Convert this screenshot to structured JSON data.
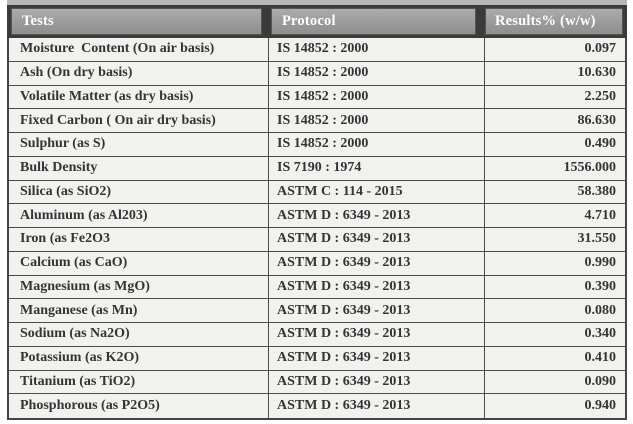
{
  "table": {
    "columns": [
      {
        "label": "Tests"
      },
      {
        "label": "Protocol"
      },
      {
        "label": "Results% (w/w)"
      }
    ],
    "rows": [
      {
        "test": "Moisture  Content (On air basis)",
        "protocol": "IS 14852 : 2000",
        "result": "0.097"
      },
      {
        "test": "Ash (On dry basis)",
        "protocol": "IS 14852 : 2000",
        "result": "10.630"
      },
      {
        "test": "Volatile Matter (as dry basis)",
        "protocol": "IS 14852 : 2000",
        "result": "2.250"
      },
      {
        "test": "Fixed Carbon ( On air dry basis)",
        "protocol": "IS 14852 : 2000",
        "result": "86.630"
      },
      {
        "test": "Sulphur (as S)",
        "protocol": "IS 14852 : 2000",
        "result": "0.490"
      },
      {
        "test": "Bulk Density",
        "protocol": "IS 7190 : 1974",
        "result": "1556.000"
      },
      {
        "test": "Silica (as SiO2)",
        "protocol": "ASTM C : 114 - 2015",
        "result": "58.380"
      },
      {
        "test": "Aluminum (as Al203)",
        "protocol": "ASTM D : 6349 - 2013",
        "result": "4.710"
      },
      {
        "test": "Iron (as Fe2O3",
        "protocol": "ASTM D : 6349 - 2013",
        "result": "31.550"
      },
      {
        "test": "Calcium (as CaO)",
        "protocol": "ASTM D : 6349 - 2013",
        "result": "0.990"
      },
      {
        "test": "Magnesium (as MgO)",
        "protocol": "ASTM D : 6349 - 2013",
        "result": "0.390"
      },
      {
        "test": "Manganese (as Mn)",
        "protocol": "ASTM D : 6349 - 2013",
        "result": "0.080"
      },
      {
        "test": "Sodium (as Na2O)",
        "protocol": "ASTM D : 6349 - 2013",
        "result": "0.340"
      },
      {
        "test": "Potassium (as K2O)",
        "protocol": "ASTM D : 6349 - 2013",
        "result": "0.410"
      },
      {
        "test": "Titanium (as TiO2)",
        "protocol": "ASTM D : 6349 - 2013",
        "result": "0.090"
      },
      {
        "test": "Phosphorous (as P2O5)",
        "protocol": "ASTM D : 6349 - 2013",
        "result": "0.940"
      }
    ]
  },
  "colors": {
    "header_fill": "#9c9c9c",
    "header_text": "#ffffff",
    "border_dark": "#454545",
    "row_bg": "#f1f1ee",
    "body_text": "#343438"
  }
}
